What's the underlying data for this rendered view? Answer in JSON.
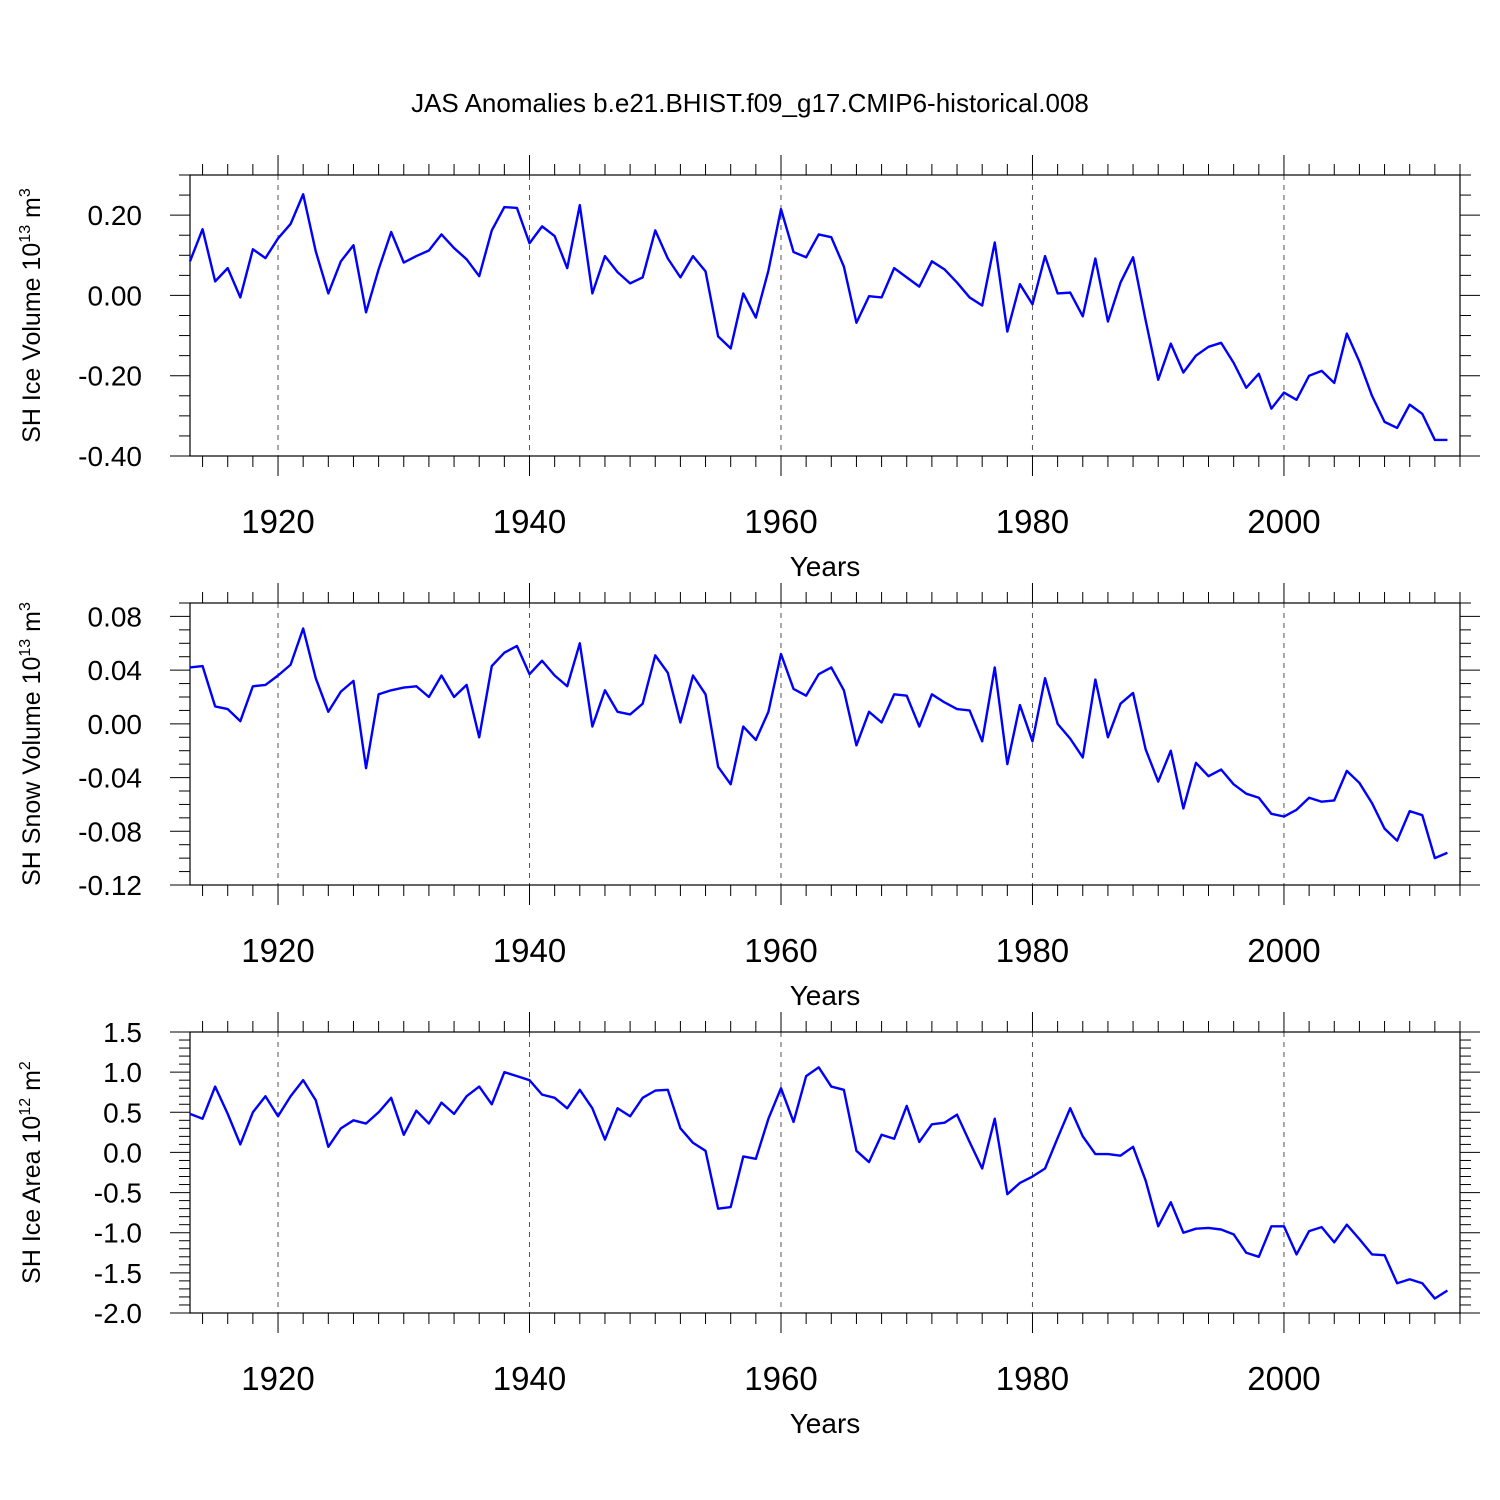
{
  "chart_data": [
    {
      "type": "line",
      "title": "JAS Anomalies b.e21.BHIST.f09_g17.CMIP6-historical.008",
      "xlabel": "Years",
      "ylabel": "SH Ice Volume 10",
      "ylabel_exp1": "13",
      "ylabel_unit": " m",
      "ylabel_exp2": "3",
      "xlim": [
        1913,
        2014
      ],
      "ylim": [
        -0.4,
        0.3
      ],
      "xticks": [
        1920,
        1940,
        1960,
        1980,
        2000
      ],
      "xtick_labels": [
        "1920",
        "1940",
        "1960",
        "1980",
        "2000"
      ],
      "yticks": [
        -0.4,
        -0.2,
        0.0,
        0.2
      ],
      "ytick_labels": [
        "-0.40",
        "-0.20",
        "0.00",
        "0.20"
      ],
      "y_minor_step": 0.05,
      "grid": "dashed vertical at major x ticks",
      "series": [
        {
          "color": "#0000ff",
          "x_start": 1913,
          "values": [
            0.085,
            0.165,
            0.035,
            0.068,
            -0.005,
            0.115,
            0.093,
            0.142,
            0.178,
            0.252,
            0.11,
            0.005,
            0.085,
            0.125,
            -0.042,
            0.065,
            0.158,
            0.082,
            0.098,
            0.112,
            0.152,
            0.118,
            0.09,
            0.048,
            0.162,
            0.22,
            0.218,
            0.13,
            0.172,
            0.148,
            0.068,
            0.225,
            0.005,
            0.098,
            0.058,
            0.03,
            0.045,
            0.162,
            0.092,
            0.045,
            0.098,
            0.06,
            -0.102,
            -0.132,
            0.005,
            -0.055,
            0.062,
            0.215,
            0.108,
            0.095,
            0.152,
            0.145,
            0.072,
            -0.068,
            -0.002,
            -0.005,
            0.068,
            0.045,
            0.022,
            0.085,
            0.065,
            0.032,
            -0.005,
            -0.025,
            0.132,
            -0.09,
            0.028,
            -0.022,
            0.098,
            0.005,
            0.007,
            -0.052,
            0.092,
            -0.065,
            0.032,
            0.095,
            -0.062,
            -0.21,
            -0.12,
            -0.192,
            -0.15,
            -0.128,
            -0.118,
            -0.168,
            -0.23,
            -0.195,
            -0.282,
            -0.242,
            -0.26,
            -0.2,
            -0.188,
            -0.218,
            -0.095,
            -0.165,
            -0.25,
            -0.315,
            -0.33,
            -0.272,
            -0.295,
            -0.36,
            -0.36
          ]
        }
      ]
    },
    {
      "type": "line",
      "xlabel": "Years",
      "ylabel": "SH Snow Volume 10",
      "ylabel_exp1": "13",
      "ylabel_unit": " m",
      "ylabel_exp2": "3",
      "xlim": [
        1913,
        2014
      ],
      "ylim": [
        -0.12,
        0.09
      ],
      "xticks": [
        1920,
        1940,
        1960,
        1980,
        2000
      ],
      "xtick_labels": [
        "1920",
        "1940",
        "1960",
        "1980",
        "2000"
      ],
      "yticks": [
        -0.12,
        -0.08,
        -0.04,
        0.0,
        0.04,
        0.08
      ],
      "ytick_labels": [
        "-0.12",
        "-0.08",
        "-0.04",
        "0.00",
        "0.04",
        "0.08"
      ],
      "y_minor_step": 0.01,
      "grid": "dashed vertical at major x ticks",
      "series": [
        {
          "color": "#0000ff",
          "x_start": 1913,
          "values": [
            0.042,
            0.043,
            0.013,
            0.011,
            0.002,
            0.028,
            0.029,
            0.036,
            0.044,
            0.071,
            0.034,
            0.009,
            0.024,
            0.032,
            -0.033,
            0.022,
            0.025,
            0.027,
            0.028,
            0.02,
            0.036,
            0.02,
            0.029,
            -0.01,
            0.043,
            0.053,
            0.058,
            0.037,
            0.047,
            0.036,
            0.028,
            0.06,
            -0.002,
            0.025,
            0.009,
            0.007,
            0.015,
            0.051,
            0.038,
            0.001,
            0.036,
            0.022,
            -0.032,
            -0.045,
            -0.002,
            -0.012,
            0.009,
            0.052,
            0.026,
            0.021,
            0.037,
            0.042,
            0.025,
            -0.016,
            0.009,
            0.001,
            0.022,
            0.021,
            -0.002,
            0.022,
            0.016,
            0.011,
            0.01,
            -0.013,
            0.042,
            -0.03,
            0.014,
            -0.013,
            0.034,
            0.0,
            -0.011,
            -0.025,
            0.033,
            -0.01,
            0.015,
            0.023,
            -0.019,
            -0.043,
            -0.02,
            -0.063,
            -0.029,
            -0.039,
            -0.034,
            -0.045,
            -0.052,
            -0.055,
            -0.067,
            -0.069,
            -0.064,
            -0.055,
            -0.058,
            -0.057,
            -0.035,
            -0.044,
            -0.059,
            -0.078,
            -0.087,
            -0.065,
            -0.068,
            -0.1,
            -0.096
          ]
        }
      ]
    },
    {
      "type": "line",
      "xlabel": "Years",
      "ylabel": "SH Ice Area 10",
      "ylabel_exp1": "12",
      "ylabel_unit": " m",
      "ylabel_exp2": "2",
      "xlim": [
        1913,
        2014
      ],
      "ylim": [
        -2.0,
        1.5
      ],
      "xticks": [
        1920,
        1940,
        1960,
        1980,
        2000
      ],
      "xtick_labels": [
        "1920",
        "1940",
        "1960",
        "1980",
        "2000"
      ],
      "yticks": [
        -2.0,
        -1.5,
        -1.0,
        -0.5,
        0.0,
        0.5,
        1.0,
        1.5
      ],
      "ytick_labels": [
        "-2.0",
        "-1.5",
        "-1.0",
        "-0.5",
        "0.0",
        "0.5",
        "1.0",
        "1.5"
      ],
      "y_minor_step": 0.1,
      "grid": "dashed vertical at major x ticks",
      "series": [
        {
          "color": "#0000ff",
          "x_start": 1913,
          "values": [
            0.48,
            0.42,
            0.82,
            0.48,
            0.1,
            0.5,
            0.7,
            0.45,
            0.7,
            0.9,
            0.65,
            0.07,
            0.3,
            0.4,
            0.36,
            0.5,
            0.68,
            0.22,
            0.52,
            0.36,
            0.62,
            0.48,
            0.7,
            0.82,
            0.6,
            1.0,
            0.95,
            0.9,
            0.72,
            0.68,
            0.55,
            0.78,
            0.55,
            0.16,
            0.55,
            0.45,
            0.68,
            0.77,
            0.78,
            0.3,
            0.12,
            0.02,
            -0.7,
            -0.68,
            -0.05,
            -0.08,
            0.42,
            0.8,
            0.38,
            0.95,
            1.06,
            0.82,
            0.78,
            0.02,
            -0.12,
            0.22,
            0.17,
            0.58,
            0.13,
            0.35,
            0.37,
            0.47,
            0.13,
            -0.2,
            0.42,
            -0.52,
            -0.38,
            -0.3,
            -0.2,
            0.18,
            0.55,
            0.2,
            -0.02,
            -0.02,
            -0.04,
            0.07,
            -0.35,
            -0.92,
            -0.62,
            -1.0,
            -0.95,
            -0.94,
            -0.96,
            -1.02,
            -1.25,
            -1.3,
            -0.92,
            -0.92,
            -1.27,
            -0.98,
            -0.93,
            -1.12,
            -0.9,
            -1.08,
            -1.27,
            -1.28,
            -1.63,
            -1.58,
            -1.63,
            -1.82,
            -1.72
          ]
        }
      ]
    }
  ]
}
